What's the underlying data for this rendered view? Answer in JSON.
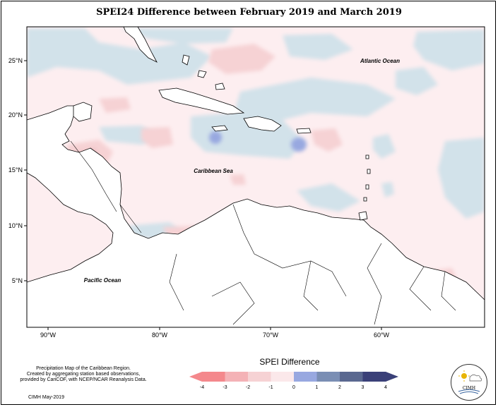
{
  "title": "SPEI24 Difference between February 2019 and March 2019",
  "map": {
    "lat_ticks": [
      "25°N",
      "20°N",
      "15°N",
      "10°N",
      "5°N"
    ],
    "lon_ticks": [
      "90°W",
      "80°W",
      "70°W",
      "60°W"
    ],
    "labels": {
      "atlantic": "Atlantic Ocean",
      "caribbean": "Caribbean Sea",
      "pacific": "Pacific Ocean"
    }
  },
  "legend": {
    "title": "SPEI Difference",
    "ticks": [
      "-4",
      "-3",
      "-2",
      "-1",
      "0",
      "1",
      "2",
      "3",
      "4"
    ],
    "colors": [
      "#f4888c",
      "#f4b2b6",
      "#f6d2d4",
      "#fbe8ea",
      "#d2e2ea",
      "#98a8e0",
      "#7a8eb4",
      "#5a6890",
      "#3a4078"
    ]
  },
  "footer": {
    "line1": "Precipitation Map of the Caribbean Region.",
    "line2": "Created by aggregating station based observations,",
    "line3": "provided by CariCOF, with NCEP/NCAR Reanalysis Data.",
    "credit": "CIMH May-2019"
  },
  "logo": {
    "text": "CIMH"
  }
}
